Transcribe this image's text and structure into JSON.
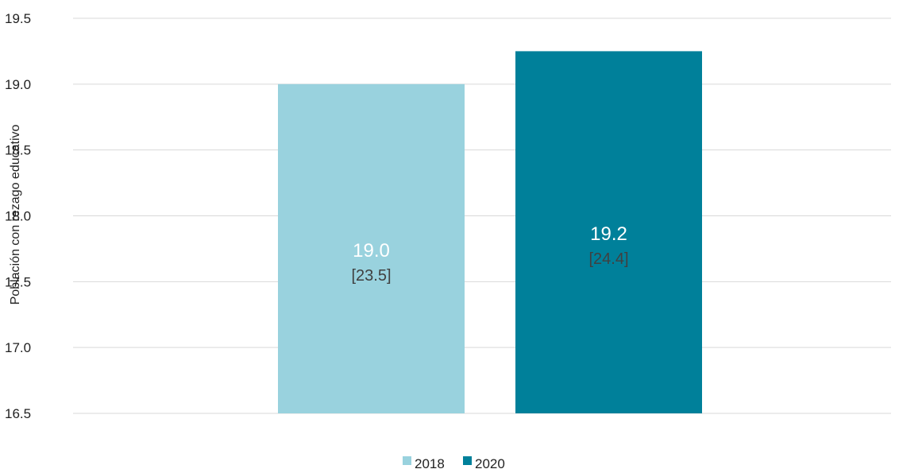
{
  "chart_data": {
    "type": "bar",
    "title": "",
    "xlabel": "",
    "ylabel": "Población con rezago educativo",
    "ylim": [
      16.5,
      19.5
    ],
    "yticks": [
      "16.5",
      "17.0",
      "17.5",
      "18.0",
      "18.5",
      "19.0",
      "19.5"
    ],
    "grid": true,
    "legend_position": "bottom",
    "series": [
      {
        "name": "2018",
        "value": 19.0,
        "value_label": "19.0",
        "sub_label": "[23.5]",
        "color": "#99D2DE"
      },
      {
        "name": "2020",
        "value": 19.25,
        "value_label": "19.2",
        "sub_label": "[24.4]",
        "color": "#00809A"
      }
    ]
  }
}
